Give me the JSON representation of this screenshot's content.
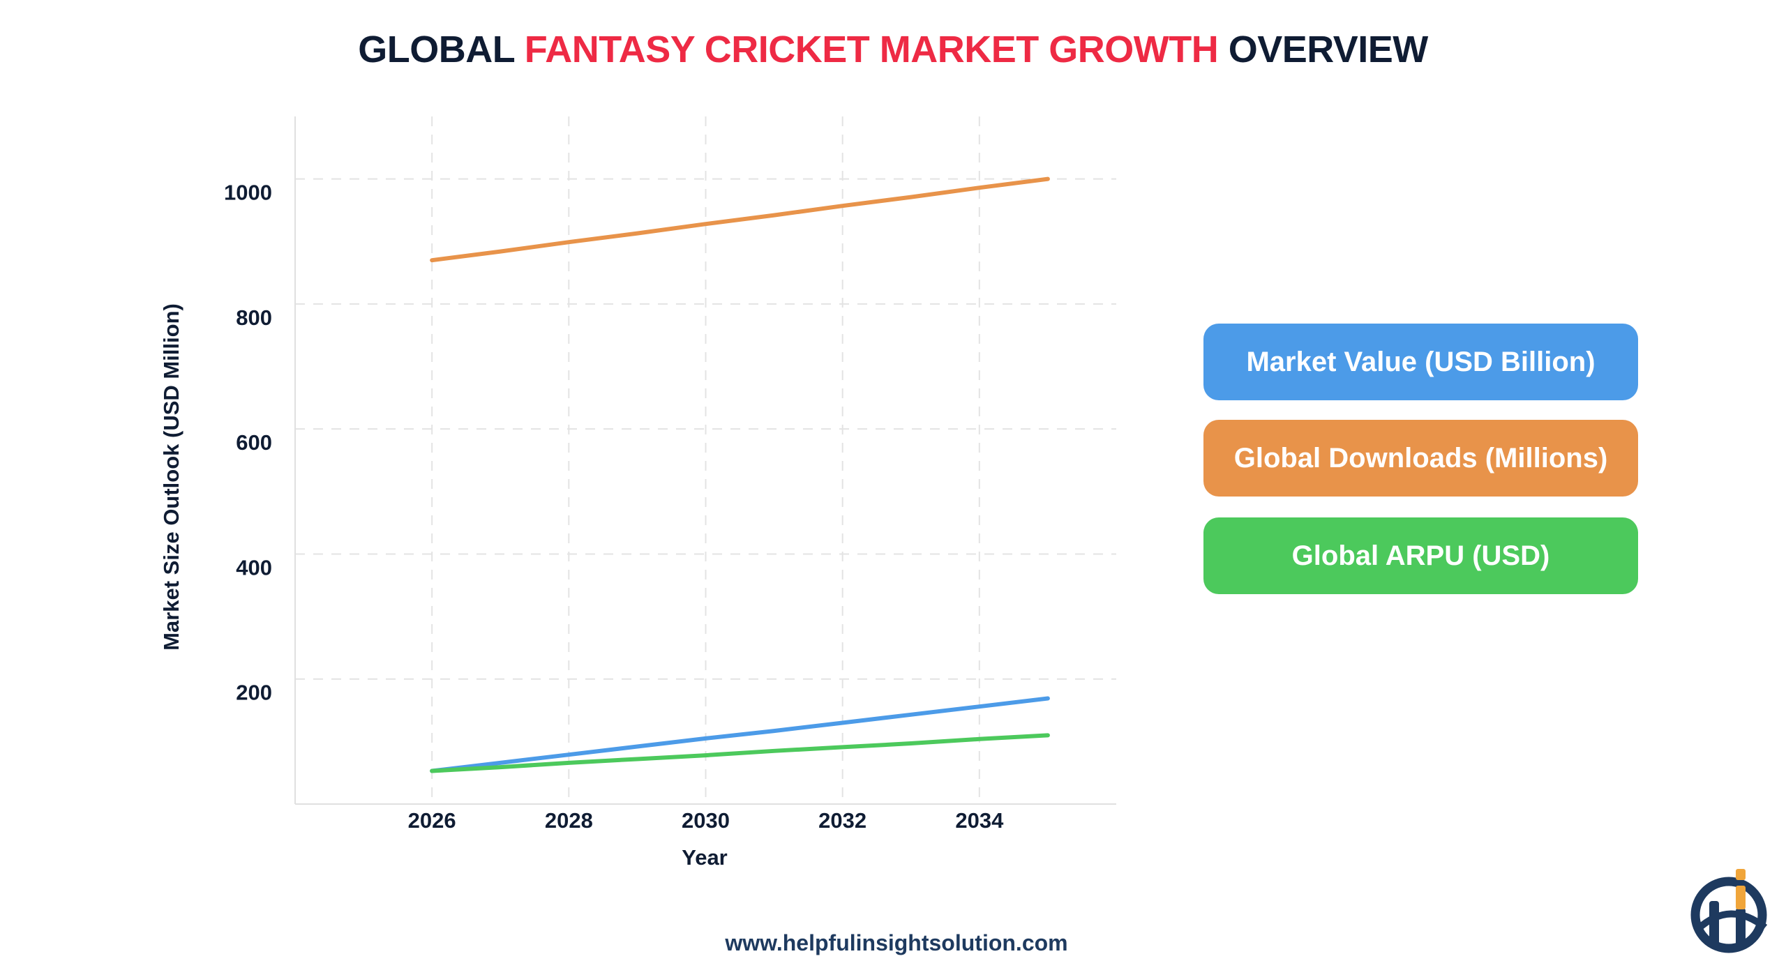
{
  "title": {
    "part1": "GLOBAL ",
    "accent": "FANTASY CRICKET MARKET GROWTH",
    "part2": " OVERVIEW"
  },
  "colors": {
    "accent": "#ee2a44",
    "market_value": "#4c9be8",
    "downloads": "#e8934a",
    "arpu": "#4cc95c",
    "navy": "#1e3a5f",
    "logo_orange": "#f0a53a"
  },
  "chart_data": {
    "type": "line",
    "title": "GLOBAL FANTASY CRICKET MARKET GROWTH OVERVIEW",
    "xlabel": "Year",
    "ylabel": "Market Size Outlook  (USD Million)",
    "xlim": [
      2024,
      2036
    ],
    "ylim": [
      0,
      1100
    ],
    "x_ticks": [
      2026,
      2028,
      2030,
      2032,
      2034
    ],
    "y_ticks": [
      200,
      400,
      600,
      800,
      1000
    ],
    "grid": true,
    "legend_placement": "right",
    "x": [
      2026,
      2027,
      2028,
      2029,
      2030,
      2031,
      2032,
      2033,
      2034,
      2035
    ],
    "series": [
      {
        "name": "Market Value (USD Billion)",
        "color": "#4c9be8",
        "values": [
          53,
          66,
          79,
          92,
          105,
          117,
          130,
          143,
          156,
          169
        ]
      },
      {
        "name": "Global Downloads (Millions)",
        "color": "#e8934a",
        "values": [
          870,
          884,
          899,
          913,
          928,
          942,
          957,
          971,
          986,
          1000
        ]
      },
      {
        "name": "Global ARPU (USD)",
        "color": "#4cc95c",
        "values": [
          53,
          59,
          66,
          72,
          78,
          85,
          91,
          97,
          104,
          110
        ]
      }
    ]
  },
  "footer": {
    "website": "www.helpfulinsightsolution.com"
  },
  "logo": {
    "name": "helpful-insight-logo",
    "text": "Hi"
  }
}
